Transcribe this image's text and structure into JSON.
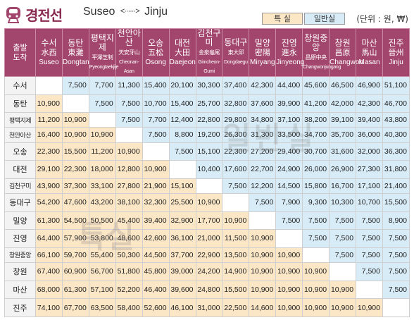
{
  "header": {
    "title": "경전선",
    "route_from": "Suseo",
    "route_arrow": "<······>",
    "route_to": "Jinju",
    "legend_special": "특 실",
    "legend_normal": "일반실",
    "unit": "(단위 : 원, ₩)"
  },
  "colors": {
    "header_bg": "#a3466e",
    "special": "#fbe6c6",
    "normal": "#d8ecf8",
    "title": "#8a2b52"
  },
  "corner": {
    "line1": "출발",
    "line2": "도착"
  },
  "stations": [
    {
      "ko": "수서",
      "hanja": "水西",
      "en": "Suseo"
    },
    {
      "ko": "동탄",
      "hanja": "東灘",
      "en": "Dongtan"
    },
    {
      "ko": "평택지제",
      "hanja": "平澤芝制",
      "en": "Pyeongtaekjije"
    },
    {
      "ko": "천안아산",
      "hanja": "天安牙山",
      "en": "Cheonan-Asan"
    },
    {
      "ko": "오송",
      "hanja": "五松",
      "en": "Osong"
    },
    {
      "ko": "대전",
      "hanja": "大田",
      "en": "Daejeon"
    },
    {
      "ko": "김천구미",
      "hanja": "金泉龜尾",
      "en": "Gimcheon-Gumi"
    },
    {
      "ko": "동대구",
      "hanja": "東大邱",
      "en": "Dongdaegu"
    },
    {
      "ko": "밀양",
      "hanja": "密陽",
      "en": "Miryang"
    },
    {
      "ko": "진영",
      "hanja": "進永",
      "en": "Jinyeong"
    },
    {
      "ko": "창원중앙",
      "hanja": "昌原中央",
      "en": "Changwonjungang"
    },
    {
      "ko": "창원",
      "hanja": "昌原",
      "en": "Changwon"
    },
    {
      "ko": "마산",
      "hanja": "馬山",
      "en": "Masan"
    },
    {
      "ko": "진주",
      "hanja": "晉州",
      "en": "Jinju"
    }
  ],
  "fares": [
    [
      "",
      "7,500",
      "7,700",
      "11,300",
      "15,400",
      "20,100",
      "30,300",
      "37,400",
      "42,300",
      "44,400",
      "45,600",
      "46,500",
      "46,900",
      "51,100"
    ],
    [
      "10,900",
      "",
      "7,500",
      "7,500",
      "10,700",
      "15,400",
      "25,700",
      "32,800",
      "37,600",
      "39,900",
      "41,200",
      "42,000",
      "42,300",
      "46,700"
    ],
    [
      "11,200",
      "10,900",
      "",
      "7,500",
      "7,700",
      "12,400",
      "22,800",
      "29,800",
      "34,800",
      "37,100",
      "38,200",
      "39,100",
      "39,400",
      "43,800"
    ],
    [
      "16,400",
      "10,900",
      "10,900",
      "",
      "7,500",
      "8,800",
      "19,200",
      "26,300",
      "31,300",
      "33,500",
      "34,700",
      "35,700",
      "36,000",
      "40,300"
    ],
    [
      "22,300",
      "15,500",
      "11,200",
      "10,900",
      "",
      "7,500",
      "15,100",
      "22,300",
      "27,200",
      "29,400",
      "30,700",
      "31,600",
      "32,000",
      "36,300"
    ],
    [
      "29,100",
      "22,300",
      "18,000",
      "12,800",
      "10,900",
      "",
      "10,400",
      "17,600",
      "22,700",
      "24,900",
      "26,000",
      "26,900",
      "27,300",
      "31,800"
    ],
    [
      "43,900",
      "37,300",
      "33,100",
      "27,800",
      "21,900",
      "15,100",
      "",
      "7,500",
      "12,200",
      "14,500",
      "15,800",
      "16,700",
      "17,100",
      "21,400"
    ],
    [
      "54,200",
      "47,600",
      "43,200",
      "38,100",
      "32,300",
      "25,500",
      "10,900",
      "",
      "7,500",
      "7,900",
      "9,300",
      "10,300",
      "10,700",
      "15,500"
    ],
    [
      "61,300",
      "54,500",
      "50,500",
      "45,400",
      "39,400",
      "32,900",
      "17,700",
      "10,900",
      "",
      "7,500",
      "7,500",
      "7,500",
      "7,500",
      "8,900"
    ],
    [
      "64,400",
      "57,900",
      "53,800",
      "48,600",
      "42,600",
      "36,100",
      "21,000",
      "11,500",
      "10,900",
      "",
      "7,500",
      "7,500",
      "7,500",
      "7,500"
    ],
    [
      "66,100",
      "59,700",
      "55,400",
      "50,300",
      "44,500",
      "37,700",
      "22,900",
      "13,500",
      "10,900",
      "10,900",
      "",
      "7,500",
      "7,500",
      "7,500"
    ],
    [
      "67,400",
      "60,900",
      "56,700",
      "51,800",
      "45,800",
      "39,000",
      "24,200",
      "14,900",
      "10,900",
      "10,900",
      "10,900",
      "",
      "7,500",
      "7,500"
    ],
    [
      "68,000",
      "61,300",
      "57,100",
      "52,200",
      "46,400",
      "39,600",
      "24,800",
      "15,500",
      "10,900",
      "10,900",
      "10,900",
      "10,900",
      "",
      "7,500"
    ],
    [
      "74,100",
      "67,700",
      "63,500",
      "58,400",
      "52,600",
      "46,100",
      "31,000",
      "22,500",
      "14,600",
      "10,900",
      "10,900",
      "10,900",
      "10,900",
      ""
    ]
  ],
  "watermarks": {
    "normal": "일반실",
    "special": "특실"
  }
}
